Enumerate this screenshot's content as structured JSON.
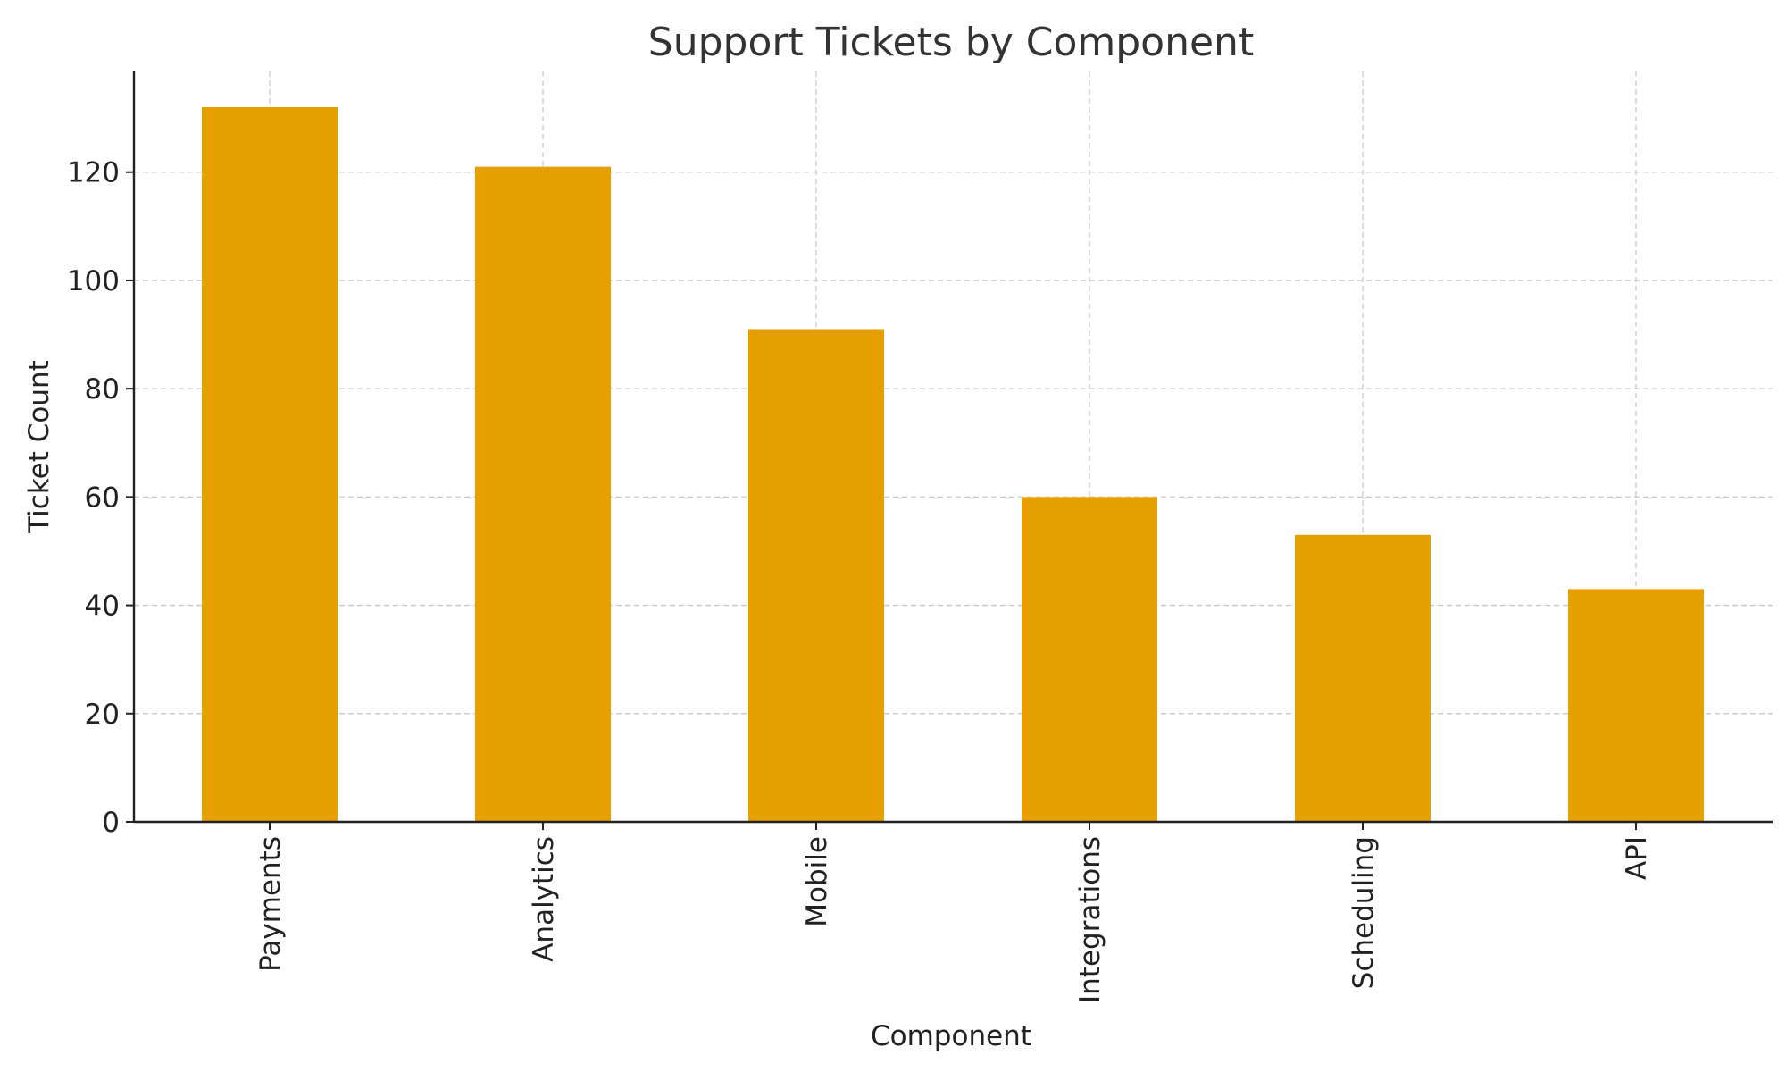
{
  "chart_data": {
    "type": "bar",
    "title": "Support Tickets by Component",
    "xlabel": "Component",
    "ylabel": "Ticket Count",
    "categories": [
      "Payments",
      "Analytics",
      "Mobile",
      "Integrations",
      "Scheduling",
      "API"
    ],
    "values": [
      132,
      121,
      91,
      60,
      53,
      43
    ],
    "ylim": [
      0,
      138.6
    ],
    "yticks": [
      0,
      20,
      40,
      60,
      80,
      100,
      120
    ],
    "grid": true,
    "bar_color": "#E69F00",
    "legend": "none"
  }
}
